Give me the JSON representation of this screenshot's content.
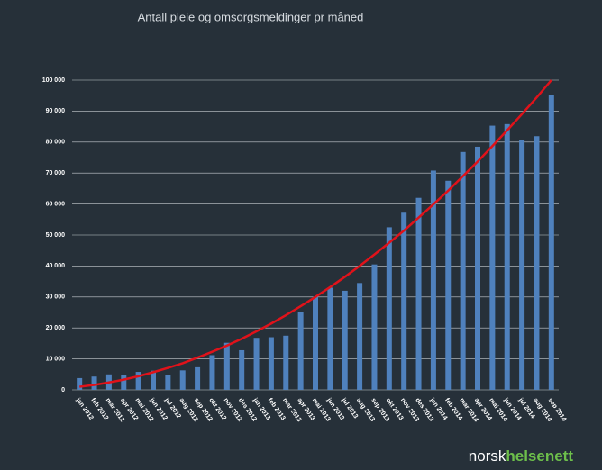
{
  "chart_data": {
    "type": "bar",
    "title": "Antall pleie og omsorgsmeldinger pr måned",
    "categories": [
      "jan 2012",
      "feb 2012",
      "mar 2012",
      "apr 2012",
      "mai 2012",
      "jun 2012",
      "jul 2012",
      "aug 2012",
      "sep 2012",
      "okt 2012",
      "nov 2012",
      "des 2012",
      "jan 2013",
      "feb 2013",
      "mar 2013",
      "apr 2013",
      "mai 2013",
      "jun 2013",
      "jul 2013",
      "aug 2013",
      "sep 2013",
      "okt 2013",
      "nov 2013",
      "des 2013",
      "jan 2014",
      "feb 2014",
      "mar 2014",
      "apr 2014",
      "mai 2014",
      "jun 2014",
      "jul 2014",
      "aug 2014",
      "sep 2014"
    ],
    "series": [
      {
        "type": "bar",
        "color": "#4f81bd",
        "values": [
          3800,
          4300,
          5000,
          4700,
          5800,
          6200,
          4800,
          6300,
          7300,
          11200,
          15200,
          12800,
          16800,
          17000,
          17500,
          25000,
          30000,
          33000,
          32000,
          34500,
          40500,
          52500,
          57200,
          62000,
          70800,
          67500,
          76800,
          78500,
          85300,
          85800,
          80700,
          81900,
          95200
        ]
      },
      {
        "type": "line",
        "color": "#e0121a",
        "values": [
          1000,
          1600,
          2400,
          3300,
          4400,
          5700,
          7100,
          8600,
          10400,
          12300,
          14300,
          16500,
          18900,
          21400,
          24100,
          27000,
          30000,
          33200,
          36500,
          40000,
          43700,
          47500,
          51400,
          55600,
          59900,
          64300,
          69000,
          73700,
          78700,
          83800,
          89000,
          94400,
          100000
        ]
      }
    ],
    "ylim": [
      0,
      100000
    ],
    "yticks": [
      0,
      {
        "value": 10000,
        "label": "10 000"
      },
      {
        "value": 20000,
        "label": "20 000"
      },
      {
        "value": 30000,
        "label": "30 000"
      },
      {
        "value": 40000,
        "label": "40 000"
      },
      {
        "value": 50000,
        "label": "50 000"
      },
      {
        "value": 60000,
        "label": "60 000"
      },
      {
        "value": 70000,
        "label": "70 000"
      },
      {
        "value": 80000,
        "label": "80 000"
      },
      {
        "value": 90000,
        "label": "90 000"
      },
      {
        "value": 100000,
        "label": "100 000"
      }
    ],
    "grid": true
  },
  "logo": [
    "norsk",
    "helsenett"
  ]
}
